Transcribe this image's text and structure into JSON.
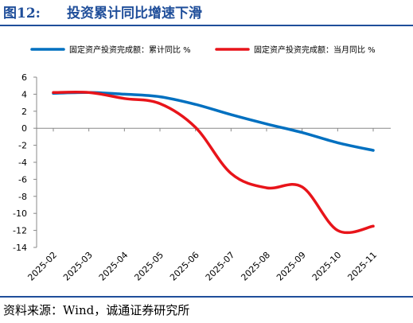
{
  "figure": {
    "number": "图12:",
    "title": "投资累计同比增速下滑",
    "source": "资料来源：Wind，诚通证券研究所"
  },
  "chart_data": {
    "type": "line",
    "title": "",
    "xlabel": "",
    "ylabel": "",
    "categories": [
      "2025-02",
      "2025-03",
      "2025-04",
      "2025-05",
      "2025-06",
      "2025-07",
      "2025-08",
      "2025-09",
      "2025-10",
      "2025-11"
    ],
    "series": [
      {
        "name": "固定资产投资完成额：累计同比  %",
        "color": "#0070c0",
        "values": [
          4.1,
          4.2,
          4.0,
          3.7,
          2.8,
          1.6,
          0.5,
          -0.5,
          -1.7,
          -2.6
        ]
      },
      {
        "name": "固定资产投资完成额：当月同比  %",
        "color": "#e8141a",
        "values": [
          4.2,
          4.2,
          3.5,
          2.9,
          0.1,
          -5.3,
          -7.0,
          -6.9,
          -12.0,
          -11.5
        ]
      }
    ],
    "ylim": [
      -14,
      6
    ],
    "yticks": [
      6,
      4,
      2,
      0,
      -2,
      -4,
      -6,
      -8,
      -10,
      -12,
      -14
    ],
    "grid": false,
    "legend": "top"
  }
}
